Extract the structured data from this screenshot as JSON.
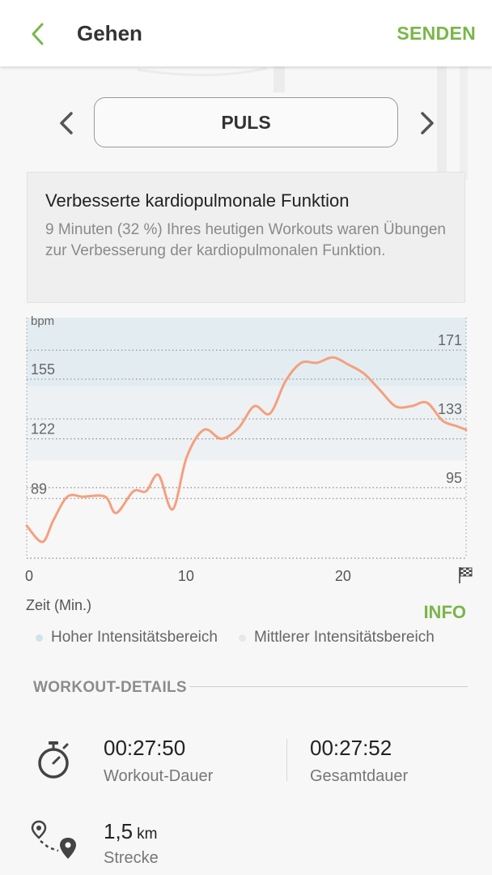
{
  "header": {
    "title": "Gehen",
    "send_label": "SENDEN"
  },
  "metric_selector": {
    "current": "PULS"
  },
  "info_card": {
    "title": "Verbesserte kardiopulmonale Funktion",
    "body": "9 Minuten (32 %) Ihres heutigen Workouts waren Übungen zur Verbesserung der kardiopulmonalen Funktion."
  },
  "chart_data": {
    "type": "line",
    "ylabel": "bpm",
    "xlabel": "Zeit (Min.)",
    "xlim": [
      0,
      28
    ],
    "ylim": [
      56,
      189
    ],
    "x_ticks": [
      0,
      10,
      20
    ],
    "finish_marker": "finish-flag",
    "left_gridlines": [
      155,
      122,
      89
    ],
    "right_gridlines": [
      171,
      133,
      95
    ],
    "bands": [
      {
        "name": "Hoher Intensitätsbereich",
        "from": 151,
        "to": 189,
        "color": "#e3edf1"
      },
      {
        "name": "Mittlerer Intensitätsbereich",
        "from": 110,
        "to": 151,
        "color": "#edf1f3"
      }
    ],
    "series": [
      {
        "color": "#f4a07f",
        "x": [
          0,
          1,
          1.7,
          2.6,
          3.6,
          5,
          5.7,
          6.8,
          7.6,
          8.4,
          9.3,
          10.2,
          11.3,
          12.4,
          13.5,
          14.5,
          15.5,
          16.5,
          17.5,
          18.5,
          19.5,
          20.5,
          21.5,
          22.5,
          23.5,
          24.5,
          25.5,
          26.5,
          27.4,
          28
        ],
        "y": [
          74,
          65,
          77,
          90,
          90,
          90,
          81,
          93,
          93,
          102,
          83,
          112,
          127,
          122,
          128,
          140,
          136,
          154,
          164,
          164,
          167,
          163,
          158,
          149,
          140,
          140,
          142,
          132,
          129,
          127
        ]
      }
    ]
  },
  "x_axis_label": "Zeit (Min.)",
  "info_label": "INFO",
  "legend": {
    "high": {
      "label": "Hoher Intensitätsbereich",
      "color": "#cfe3ea"
    },
    "medium": {
      "label": "Mittlerer Intensitätsbereich",
      "color": "#e4e9ec"
    }
  },
  "details": {
    "title": "WORKOUT-DETAILS",
    "workout_duration": {
      "value": "00:27:50",
      "label": "Workout-Dauer",
      "icon": "stopwatch-icon"
    },
    "total_duration": {
      "value": "00:27:52",
      "label": "Gesamtdauer"
    },
    "distance": {
      "value": "1,5",
      "unit": "km",
      "label": "Strecke",
      "icon": "route-icon"
    }
  },
  "colors": {
    "accent": "#7ab648",
    "line": "#f4a07f"
  }
}
